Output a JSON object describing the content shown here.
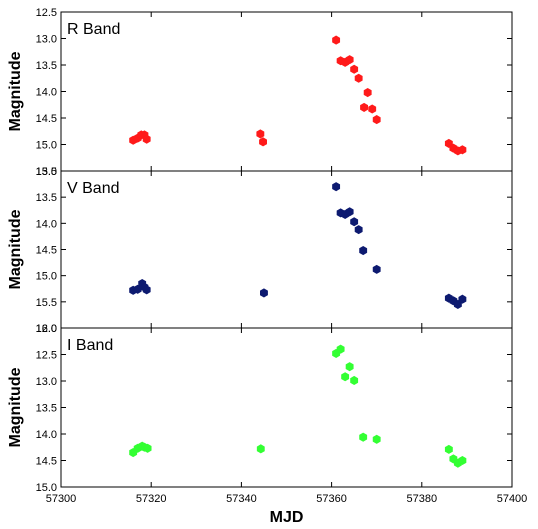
{
  "chart_data": {
    "type": "scatter",
    "xlabel": "MJD",
    "xlim": [
      57300,
      57400
    ],
    "xticks": [
      "57300",
      "57320",
      "57340",
      "57360",
      "57380",
      "57400"
    ],
    "panels": [
      {
        "name": "R Band",
        "ylabel": "Magnitude",
        "ylim": [
          12.5,
          15.5
        ],
        "yaxis_inverted": true,
        "yticks": [
          "12.5",
          "13.0",
          "13.5",
          "14.0",
          "14.5",
          "15.0",
          "15.5"
        ],
        "color": "#ff1a1a",
        "points": [
          {
            "x": 57316,
            "y": 14.92
          },
          {
            "x": 57317,
            "y": 14.88
          },
          {
            "x": 57317.8,
            "y": 14.82
          },
          {
            "x": 57318.5,
            "y": 14.82
          },
          {
            "x": 57319,
            "y": 14.9
          },
          {
            "x": 57344.2,
            "y": 14.8
          },
          {
            "x": 57344.8,
            "y": 14.95
          },
          {
            "x": 57361,
            "y": 13.03
          },
          {
            "x": 57362,
            "y": 13.42
          },
          {
            "x": 57363,
            "y": 13.45
          },
          {
            "x": 57364,
            "y": 13.4
          },
          {
            "x": 57365,
            "y": 13.58
          },
          {
            "x": 57366,
            "y": 13.75
          },
          {
            "x": 57367.2,
            "y": 14.3
          },
          {
            "x": 57368,
            "y": 14.02
          },
          {
            "x": 57369,
            "y": 14.33
          },
          {
            "x": 57370,
            "y": 14.53
          },
          {
            "x": 57386,
            "y": 14.98
          },
          {
            "x": 57387,
            "y": 15.07
          },
          {
            "x": 57388,
            "y": 15.12
          },
          {
            "x": 57389,
            "y": 15.1
          }
        ]
      },
      {
        "name": "V Band",
        "ylabel": "Magnitude",
        "ylim": [
          13.0,
          16.0
        ],
        "yaxis_inverted": true,
        "yticks": [
          "13.0",
          "13.5",
          "14.0",
          "14.5",
          "15.0",
          "15.5",
          "16.0"
        ],
        "color": "#0d1a70",
        "points": [
          {
            "x": 57316,
            "y": 15.28
          },
          {
            "x": 57317,
            "y": 15.26
          },
          {
            "x": 57318,
            "y": 15.15
          },
          {
            "x": 57318.5,
            "y": 15.22
          },
          {
            "x": 57319,
            "y": 15.27
          },
          {
            "x": 57345,
            "y": 15.33
          },
          {
            "x": 57361,
            "y": 13.3
          },
          {
            "x": 57362,
            "y": 13.8
          },
          {
            "x": 57363,
            "y": 13.83
          },
          {
            "x": 57364,
            "y": 13.78
          },
          {
            "x": 57365,
            "y": 13.97
          },
          {
            "x": 57366,
            "y": 14.12
          },
          {
            "x": 57367,
            "y": 14.52
          },
          {
            "x": 57370,
            "y": 14.88
          },
          {
            "x": 57386,
            "y": 15.43
          },
          {
            "x": 57387,
            "y": 15.48
          },
          {
            "x": 57388,
            "y": 15.55
          },
          {
            "x": 57389,
            "y": 15.45
          }
        ]
      },
      {
        "name": "I Band",
        "ylabel": "Magnitude",
        "ylim": [
          12.0,
          15.0
        ],
        "yaxis_inverted": true,
        "yticks": [
          "12.0",
          "12.5",
          "13.0",
          "13.5",
          "14.0",
          "14.5",
          "15.0"
        ],
        "color": "#33ff33",
        "points": [
          {
            "x": 57316,
            "y": 14.35
          },
          {
            "x": 57317,
            "y": 14.27
          },
          {
            "x": 57318,
            "y": 14.23
          },
          {
            "x": 57318.5,
            "y": 14.25
          },
          {
            "x": 57319.2,
            "y": 14.27
          },
          {
            "x": 57344.3,
            "y": 14.28
          },
          {
            "x": 57361,
            "y": 12.48
          },
          {
            "x": 57362,
            "y": 12.4
          },
          {
            "x": 57363,
            "y": 12.92
          },
          {
            "x": 57364,
            "y": 12.73
          },
          {
            "x": 57365,
            "y": 12.99
          },
          {
            "x": 57367,
            "y": 14.06
          },
          {
            "x": 57370,
            "y": 14.1
          },
          {
            "x": 57386,
            "y": 14.29
          },
          {
            "x": 57387,
            "y": 14.47
          },
          {
            "x": 57388,
            "y": 14.55
          },
          {
            "x": 57389,
            "y": 14.5
          }
        ]
      }
    ]
  }
}
